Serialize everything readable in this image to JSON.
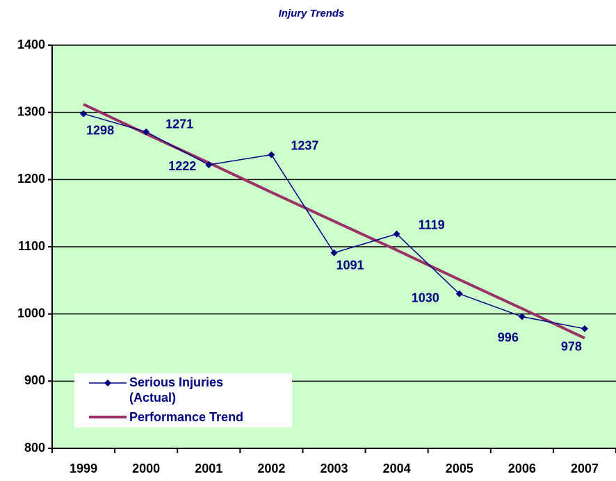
{
  "chart_data": {
    "type": "line",
    "title": "Injury Trends",
    "categories": [
      "1999",
      "2000",
      "2001",
      "2002",
      "2003",
      "2004",
      "2005",
      "2006",
      "2007"
    ],
    "series": [
      {
        "name": "Serious Injuries (Actual)",
        "color": "#000080",
        "values": [
          1298,
          1271,
          1222,
          1237,
          1091,
          1119,
          1030,
          996,
          978
        ]
      },
      {
        "name": "Performance Trend",
        "color": "#993366",
        "values": [
          1312,
          1268,
          1225,
          1181,
          1138,
          1095,
          1051,
          1008,
          964
        ]
      }
    ],
    "ylim": [
      800,
      1400
    ],
    "yticks": [
      800,
      900,
      1000,
      1100,
      1200,
      1300,
      1400
    ],
    "grid": true,
    "background": "#ccffcc"
  }
}
